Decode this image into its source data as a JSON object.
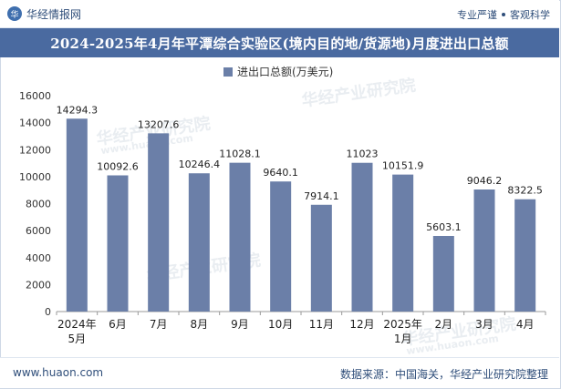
{
  "header": {
    "brand": "华经情报网",
    "tag_left": "专业严谨",
    "tag_right": "客观科学"
  },
  "watermark": {
    "cn": "华经产业研究院",
    "url": "www.huaon.com"
  },
  "footer": {
    "site": "www.huaon.com",
    "source": "数据来源：中国海关，华经产业研究院整理"
  },
  "colors": {
    "bar": "#6b7fa8",
    "title_bg": "#4a6aa0",
    "axis": "#999999"
  },
  "chart_data": {
    "type": "bar",
    "title": "2024-2025年4月年平潭综合实验区(境内目的地/货源地)月度进出口总额",
    "legend": "进出口总额(万美元)",
    "legend_position": "top",
    "categories": [
      "2024年\n5月",
      "6月",
      "7月",
      "8月",
      "9月",
      "10月",
      "11月",
      "12月",
      "2025年\n1月",
      "2月",
      "3月",
      "4月"
    ],
    "values": [
      14294.3,
      10092.6,
      13207.6,
      10246.4,
      11028.1,
      9640.1,
      7914.1,
      11023,
      10151.9,
      5603.1,
      9046.2,
      8322.5
    ],
    "value_labels": [
      "14294.3",
      "10092.6",
      "13207.6",
      "10246.4",
      "11028.1",
      "9640.1",
      "7914.1",
      "11023",
      "10151.9",
      "5603.1",
      "9046.2",
      "8322.5"
    ],
    "yticks": [
      0,
      2000,
      4000,
      6000,
      8000,
      10000,
      12000,
      14000,
      16000
    ],
    "ylim": [
      0,
      16000
    ],
    "xlabel": "",
    "ylabel": ""
  }
}
